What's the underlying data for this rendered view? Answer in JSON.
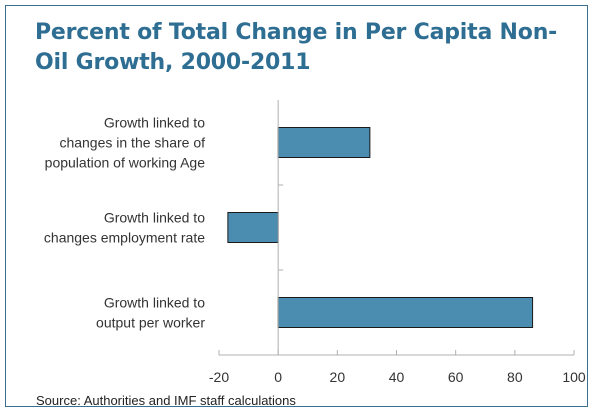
{
  "title": "Percent of Total Change in Per Capita Non-Oil Growth, 2000-2011",
  "source": "Source: Authorities and IMF staff calculations",
  "colors": {
    "bar_fill": "#4a8db0",
    "bar_stroke": "#1a1a1a",
    "title": "#2f6e93",
    "frame": "#3a6f8f",
    "axis": "#b0b0b0"
  },
  "chart_data": {
    "type": "bar",
    "orientation": "horizontal",
    "title": "Percent of Total Change in Per Capita Non-Oil Growth, 2000-2011",
    "categories": [
      [
        "Growth linked to",
        "changes in the share of",
        "population of working Age"
      ],
      [
        "Growth linked to",
        "changes employment rate"
      ],
      [
        "Growth linked to",
        "output per worker"
      ]
    ],
    "values": [
      31,
      -17,
      86
    ],
    "xlim": [
      -20,
      100
    ],
    "xticks": [
      "-20",
      "0",
      "20",
      "40",
      "60",
      "80",
      "100"
    ],
    "grid": false,
    "legend": "none"
  }
}
